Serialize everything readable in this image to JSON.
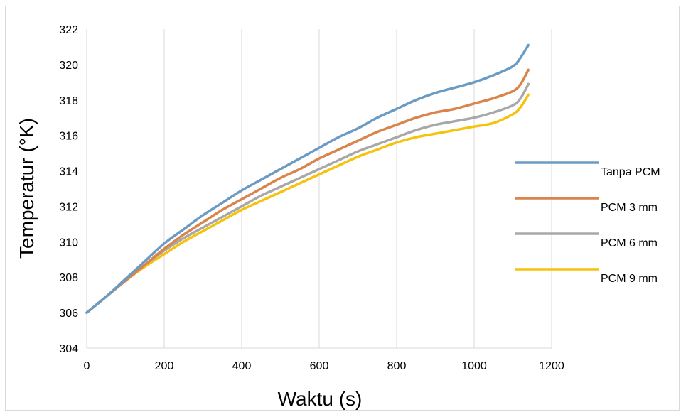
{
  "chart_data": {
    "type": "line",
    "xlabel": "Waktu (s)",
    "ylabel": "Temperatur (°K)",
    "xlim": [
      0,
      1200
    ],
    "ylim": [
      304,
      322
    ],
    "xticks": [
      0,
      200,
      400,
      600,
      800,
      1000,
      1200
    ],
    "yticks": [
      304,
      306,
      308,
      310,
      312,
      314,
      316,
      318,
      320,
      322
    ],
    "grid": "vertical",
    "legend_position": "right",
    "series": [
      {
        "name": "Tanpa PCM",
        "color": "#6b9bc3",
        "x": [
          0,
          50,
          100,
          150,
          200,
          250,
          300,
          350,
          400,
          450,
          500,
          550,
          600,
          650,
          700,
          750,
          800,
          850,
          900,
          950,
          1000,
          1050,
          1100,
          1120,
          1140
        ],
        "y": [
          306.0,
          306.9,
          307.9,
          308.9,
          309.9,
          310.7,
          311.5,
          312.2,
          312.9,
          313.5,
          314.1,
          314.7,
          315.3,
          315.9,
          316.4,
          317.0,
          317.5,
          318.0,
          318.4,
          318.7,
          319.0,
          319.4,
          319.9,
          320.4,
          321.1
        ]
      },
      {
        "name": "PCM 3 mm",
        "color": "#d9844a",
        "x": [
          0,
          50,
          100,
          150,
          200,
          250,
          300,
          350,
          400,
          450,
          500,
          550,
          600,
          650,
          700,
          750,
          800,
          850,
          900,
          950,
          1000,
          1050,
          1100,
          1120,
          1140
        ],
        "y": [
          306.0,
          306.9,
          307.8,
          308.7,
          309.6,
          310.4,
          311.1,
          311.8,
          312.4,
          313.0,
          313.6,
          314.1,
          314.7,
          315.2,
          315.7,
          316.2,
          316.6,
          317.0,
          317.3,
          317.5,
          317.8,
          318.1,
          318.5,
          318.9,
          319.7
        ]
      },
      {
        "name": "PCM 6 mm",
        "color": "#a8a8a8",
        "x": [
          0,
          50,
          100,
          150,
          200,
          250,
          300,
          350,
          400,
          450,
          500,
          550,
          600,
          650,
          700,
          750,
          800,
          850,
          900,
          950,
          1000,
          1050,
          1100,
          1120,
          1140
        ],
        "y": [
          306.0,
          306.9,
          307.8,
          308.7,
          309.5,
          310.2,
          310.8,
          311.4,
          312.0,
          312.6,
          313.1,
          313.6,
          314.1,
          314.6,
          315.1,
          315.5,
          315.9,
          316.3,
          316.6,
          316.8,
          317.0,
          317.3,
          317.7,
          318.1,
          318.9
        ]
      },
      {
        "name": "PCM 9 mm",
        "color": "#f5c20d",
        "x": [
          0,
          50,
          100,
          150,
          200,
          250,
          300,
          350,
          400,
          450,
          500,
          550,
          600,
          650,
          700,
          750,
          800,
          850,
          900,
          950,
          1000,
          1050,
          1100,
          1120,
          1140
        ],
        "y": [
          306.0,
          306.9,
          307.8,
          308.6,
          309.3,
          310.0,
          310.6,
          311.2,
          311.8,
          312.3,
          312.8,
          313.3,
          313.8,
          314.3,
          314.8,
          315.2,
          315.6,
          315.9,
          316.1,
          316.3,
          316.5,
          316.7,
          317.2,
          317.6,
          318.3
        ]
      }
    ]
  }
}
